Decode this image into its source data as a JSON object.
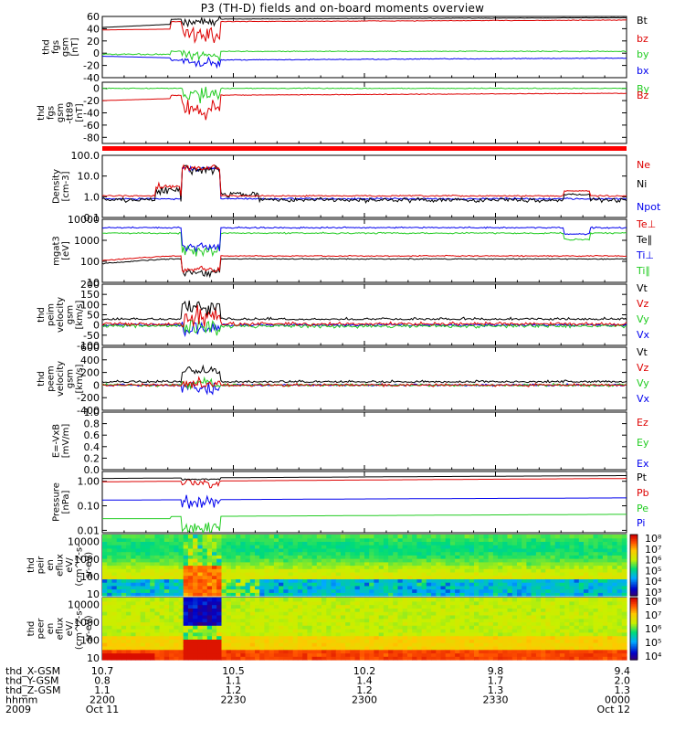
{
  "title": "P3 (TH-D) fields and on-board moments overview",
  "colors": {
    "black": "#000000",
    "red": "#dd0000",
    "green": "#22cc22",
    "blue": "#0000ee"
  },
  "chart_data": [
    {
      "id": "p1",
      "type": "line",
      "ylabel": [
        "thd",
        "fgs",
        "gsm",
        "[nT]"
      ],
      "ylim": [
        -40,
        60
      ],
      "yticks": [
        "60",
        "40",
        "20",
        "0",
        "-20",
        "-40"
      ],
      "ytick_values": [
        60,
        40,
        20,
        0,
        -20,
        -40
      ],
      "legend": [
        {
          "name": "Bt",
          "color": "black"
        },
        {
          "name": "bz",
          "color": "red"
        },
        {
          "name": "by",
          "color": "green"
        },
        {
          "name": "bx",
          "color": "blue"
        }
      ]
    },
    {
      "id": "p2",
      "type": "line",
      "ylabel": [
        "thd",
        "fgs",
        "gsm",
        "-tt89",
        "[nT]"
      ],
      "ylim": [
        -90,
        10
      ],
      "yticks": [
        "0",
        "-20",
        "-40",
        "-60",
        "-80"
      ],
      "ytick_values": [
        0,
        -20,
        -40,
        -60,
        -80
      ],
      "legend": [
        {
          "name": "By",
          "color": "green"
        },
        {
          "name": "Bz",
          "color": "red"
        }
      ]
    },
    {
      "id": "p3",
      "type": "line",
      "ylabel": [
        "Density",
        "[cm-3]"
      ],
      "log": true,
      "ylim": [
        0.1,
        100
      ],
      "yticks": [
        "100.0",
        "10.0",
        "1.0",
        "0.1"
      ],
      "ytick_values": [
        100,
        10,
        1,
        0.1
      ],
      "legend": [
        {
          "name": "Ne",
          "color": "red"
        },
        {
          "name": "Ni",
          "color": "black"
        },
        {
          "name": "Npot",
          "color": "blue"
        }
      ]
    },
    {
      "id": "p4",
      "type": "line",
      "ylabel": [
        "mgat3",
        "[eV]"
      ],
      "log": true,
      "ylim": [
        10,
        10000
      ],
      "yticks": [
        "10000",
        "1000",
        "100",
        "10"
      ],
      "ytick_values": [
        10000,
        1000,
        100,
        10
      ],
      "legend": [
        {
          "name": "Te⊥",
          "color": "red"
        },
        {
          "name": "Te∥",
          "color": "black"
        },
        {
          "name": "Ti⊥",
          "color": "blue"
        },
        {
          "name": "Ti∥",
          "color": "green"
        }
      ]
    },
    {
      "id": "p5",
      "type": "line",
      "ylabel": [
        "thd",
        "peim",
        "velocity",
        "gsm",
        "[km/s]"
      ],
      "ylim": [
        -100,
        200
      ],
      "yticks": [
        "200",
        "150",
        "100",
        "50",
        "0",
        "-50",
        "-100"
      ],
      "ytick_values": [
        200,
        150,
        100,
        50,
        0,
        -50,
        -100
      ],
      "legend": [
        {
          "name": "Vt",
          "color": "black"
        },
        {
          "name": "Vz",
          "color": "red"
        },
        {
          "name": "Vy",
          "color": "green"
        },
        {
          "name": "Vx",
          "color": "blue"
        }
      ]
    },
    {
      "id": "p6",
      "type": "line",
      "ylabel": [
        "thd",
        "peem",
        "velocity",
        "gsm",
        "[km/s]"
      ],
      "ylim": [
        -400,
        600
      ],
      "yticks": [
        "600",
        "400",
        "200",
        "0",
        "-200",
        "-400"
      ],
      "ytick_values": [
        600,
        400,
        200,
        0,
        -200,
        -400
      ],
      "legend": [
        {
          "name": "Vt",
          "color": "black"
        },
        {
          "name": "Vz",
          "color": "red"
        },
        {
          "name": "Vy",
          "color": "green"
        },
        {
          "name": "Vx",
          "color": "blue"
        }
      ]
    },
    {
      "id": "p7",
      "type": "line",
      "ylabel": [
        "E=-VxB",
        "[mV/m]"
      ],
      "ylim": [
        0,
        1
      ],
      "yticks": [
        "1.0",
        "0.8",
        "0.6",
        "0.4",
        "0.2",
        "0.0"
      ],
      "ytick_values": [
        1,
        0.8,
        0.6,
        0.4,
        0.2,
        0
      ],
      "legend": [
        {
          "name": "Ez",
          "color": "red"
        },
        {
          "name": "Ey",
          "color": "green"
        },
        {
          "name": "Ex",
          "color": "blue"
        }
      ]
    },
    {
      "id": "p8",
      "type": "line",
      "ylabel": [
        "Pressure",
        "[nPa]"
      ],
      "log": true,
      "ylim": [
        0.008,
        2.5
      ],
      "yticks": [
        "1.00",
        "0.10",
        "0.01"
      ],
      "ytick_values": [
        1,
        0.1,
        0.01
      ],
      "legend": [
        {
          "name": "Pt",
          "color": "black"
        },
        {
          "name": "Pb",
          "color": "red"
        },
        {
          "name": "Pe",
          "color": "green"
        },
        {
          "name": "Pi",
          "color": "blue"
        }
      ]
    },
    {
      "id": "p9",
      "type": "heatmap",
      "ylabel": [
        "thd",
        "peir",
        "en",
        "eflux",
        "eV/",
        "(cm^2-s-",
        "sr-eV)"
      ],
      "log": true,
      "ylim": [
        8,
        25000
      ],
      "yticks": [
        "10000",
        "1000",
        "100",
        "10"
      ],
      "ytick_values": [
        10000,
        1000,
        100,
        10
      ],
      "colorbar": {
        "labels": [
          "10⁸",
          "10⁷",
          "10⁶",
          "10⁵",
          "10⁴",
          "10³"
        ]
      }
    },
    {
      "id": "p10",
      "type": "heatmap",
      "ylabel": [
        "thd",
        "peer",
        "en",
        "eflux",
        "eV/",
        "(cm^2-s-",
        "sr-eV)"
      ],
      "log": true,
      "ylim": [
        8,
        25000
      ],
      "yticks": [
        "10000",
        "1000",
        "100",
        "10"
      ],
      "ytick_values": [
        10000,
        1000,
        100,
        10
      ],
      "colorbar": {
        "labels": [
          "10⁸",
          "10⁷",
          "10⁶",
          "10⁵",
          "10⁴"
        ]
      }
    }
  ],
  "x_axis": {
    "row_labels": [
      "thd_X-GSM",
      "thd_Y-GSM",
      "thd_Z-GSM",
      "hhmm",
      "2009"
    ],
    "columns": [
      [
        "10.7",
        "0.8",
        "1.1",
        "2200",
        "Oct 11"
      ],
      [
        "10.5",
        "1.1",
        "1.2",
        "2230",
        ""
      ],
      [
        "10.2",
        "1.4",
        "1.2",
        "2300",
        ""
      ],
      [
        "9.8",
        "1.7",
        "1.3",
        "2330",
        ""
      ],
      [
        "9.4",
        "2.0",
        "1.3",
        "0000",
        "Oct 12"
      ]
    ]
  }
}
